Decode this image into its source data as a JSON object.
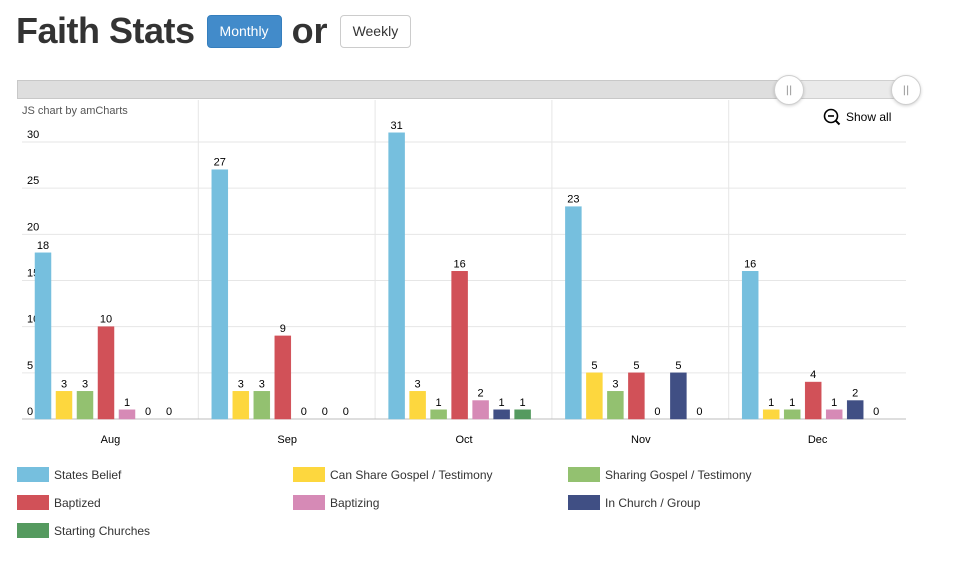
{
  "header": {
    "title": "Faith Stats",
    "monthly_label": "Monthly",
    "or_label": "or",
    "weekly_label": "Weekly"
  },
  "chart_header": {
    "credit": "JS chart by amCharts",
    "show_all": "Show all"
  },
  "chart_data": {
    "type": "bar",
    "categories": [
      "Aug",
      "Sep",
      "Oct",
      "Nov",
      "Dec"
    ],
    "ylim": [
      0,
      30
    ],
    "yticks": [
      0,
      5,
      10,
      15,
      20,
      25,
      30
    ],
    "grid": true,
    "legend_position": "bottom",
    "series": [
      {
        "name": "States Belief",
        "color": "#76bfde",
        "values": [
          18,
          27,
          31,
          23,
          16
        ]
      },
      {
        "name": "Can Share Gospel / Testimony",
        "color": "#fdd73e",
        "values": [
          3,
          3,
          3,
          5,
          1
        ]
      },
      {
        "name": "Sharing Gospel / Testimony",
        "color": "#93c170",
        "values": [
          3,
          3,
          1,
          3,
          1
        ]
      },
      {
        "name": "Baptized",
        "color": "#d15158",
        "values": [
          10,
          9,
          16,
          5,
          4
        ]
      },
      {
        "name": "Baptizing",
        "color": "#d68ab6",
        "values": [
          1,
          0,
          2,
          0,
          1
        ]
      },
      {
        "name": "In Church / Group",
        "color": "#404f84",
        "values": [
          0,
          0,
          1,
          5,
          2
        ]
      },
      {
        "name": "Starting Churches",
        "color": "#559a5f",
        "values": [
          0,
          0,
          1,
          0,
          0
        ]
      }
    ]
  }
}
